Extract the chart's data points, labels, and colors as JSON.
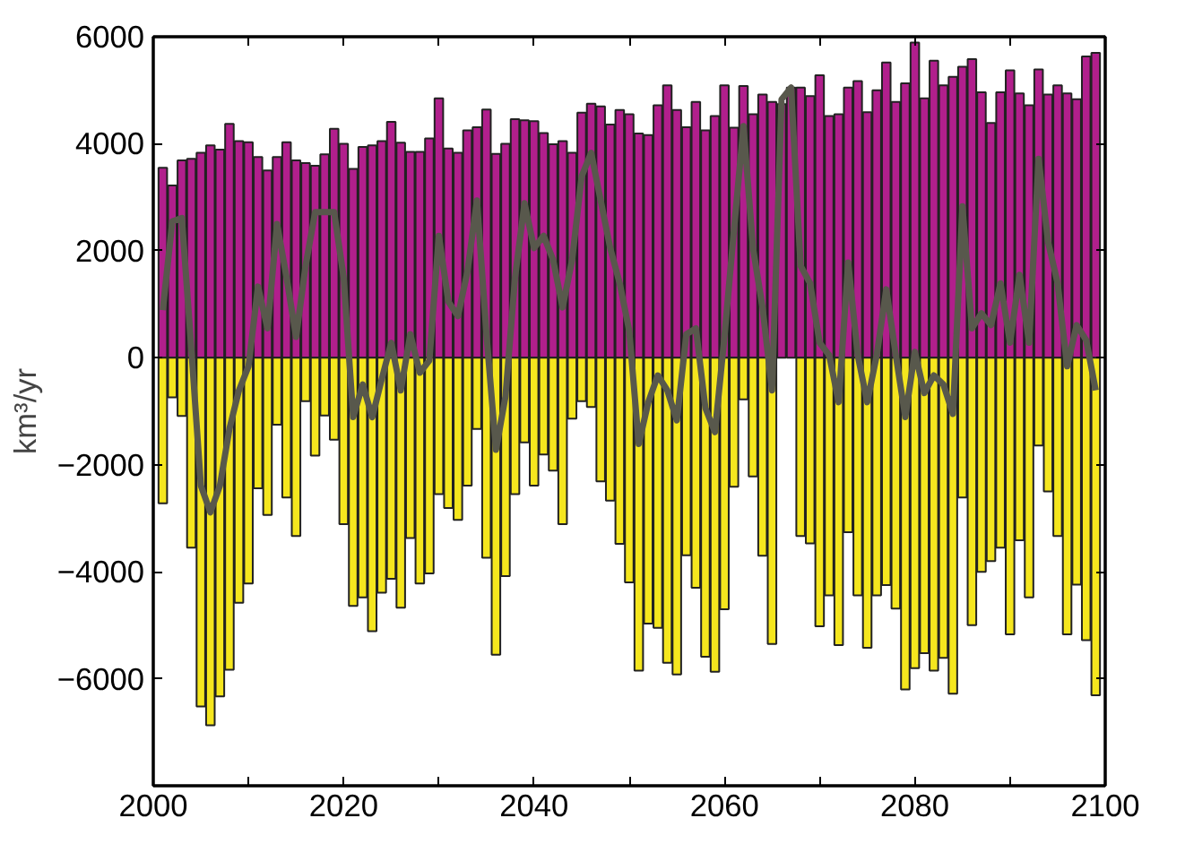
{
  "chart_data": {
    "type": "bar",
    "ylabel": "km³/yr",
    "x": [
      2001,
      2002,
      2003,
      2004,
      2005,
      2006,
      2007,
      2008,
      2009,
      2010,
      2011,
      2012,
      2013,
      2014,
      2015,
      2016,
      2017,
      2018,
      2019,
      2020,
      2021,
      2022,
      2023,
      2024,
      2025,
      2026,
      2027,
      2028,
      2029,
      2030,
      2031,
      2032,
      2033,
      2034,
      2035,
      2036,
      2037,
      2038,
      2039,
      2040,
      2041,
      2042,
      2043,
      2044,
      2045,
      2046,
      2047,
      2048,
      2049,
      2050,
      2051,
      2052,
      2053,
      2054,
      2055,
      2056,
      2057,
      2058,
      2059,
      2060,
      2061,
      2062,
      2063,
      2064,
      2065,
      2066,
      2067,
      2068,
      2069,
      2070,
      2071,
      2072,
      2073,
      2074,
      2075,
      2076,
      2077,
      2078,
      2079,
      2080,
      2081,
      2082,
      2083,
      2084,
      2085,
      2086,
      2087,
      2088,
      2089,
      2090,
      2091,
      2092,
      2093,
      2094,
      2095,
      2096,
      2097,
      2098,
      2099
    ],
    "series": [
      {
        "color": "#b11f8c",
        "values": [
          3550,
          3220,
          3690,
          3720,
          3830,
          3970,
          3890,
          4370,
          4050,
          4030,
          3750,
          3500,
          3750,
          4030,
          3690,
          3640,
          3590,
          3800,
          4280,
          4000,
          3530,
          3940,
          3970,
          4050,
          4410,
          4020,
          3850,
          3850,
          4100,
          4850,
          3910,
          3830,
          4250,
          4310,
          4640,
          3810,
          4000,
          4460,
          4440,
          4420,
          4200,
          3990,
          4050,
          3830,
          4580,
          4750,
          4700,
          4360,
          4630,
          4550,
          4190,
          4160,
          4720,
          5090,
          4630,
          4310,
          4780,
          4250,
          4520,
          5090,
          4300,
          5080,
          4550,
          4920,
          4780,
          4740,
          5050,
          5050,
          4890,
          5280,
          4520,
          4550,
          5050,
          5170,
          4590,
          5000,
          5520,
          4780,
          5130,
          5890,
          4850,
          5550,
          5090,
          5250,
          5440,
          5580,
          4960,
          4390,
          4960,
          5370,
          4940,
          4720,
          5390,
          4920,
          5090,
          4940,
          4830,
          5630,
          5700
        ]
      },
      {
        "color": "#f5e61e",
        "values": [
          -2720,
          -740,
          -1090,
          -3550,
          -6520,
          -6870,
          -6330,
          -5830,
          -4580,
          -4220,
          -2440,
          -2940,
          -1250,
          -2610,
          -3330,
          -810,
          -1830,
          -1080,
          -1530,
          -3110,
          -4640,
          -4480,
          -5110,
          -4390,
          -4130,
          -4670,
          -3370,
          -4220,
          -4030,
          -2550,
          -2810,
          -3030,
          -2390,
          -1330,
          -3740,
          -5550,
          -4080,
          -2550,
          -1580,
          -2390,
          -1810,
          -2110,
          -3110,
          -1140,
          -810,
          -920,
          -2310,
          -2670,
          -3480,
          -4200,
          -5850,
          -4970,
          -5050,
          -5700,
          -5920,
          -3690,
          -4300,
          -5590,
          -5870,
          -4700,
          -2410,
          -780,
          -2220,
          -3700,
          -5350,
          null,
          null,
          -3330,
          -3470,
          -5020,
          -4440,
          -5370,
          -3260,
          -4440,
          -5420,
          -4440,
          -4250,
          -4690,
          -6200,
          -5800,
          -5520,
          -5850,
          -5610,
          -6280,
          -2610,
          -5000,
          -4000,
          -3800,
          -3550,
          -5170,
          -3410,
          -4480,
          -1640,
          -2500,
          -3330,
          -5170,
          -4240,
          -5280,
          -6310
        ]
      },
      {
        "type": "line",
        "color": "#58584c",
        "values": [
          890,
          2550,
          2610,
          160,
          -2390,
          -2890,
          -2390,
          -1330,
          -610,
          -160,
          1330,
          550,
          2500,
          1500,
          390,
          1720,
          2720,
          2720,
          2720,
          1500,
          -1110,
          -500,
          -1110,
          -400,
          280,
          -610,
          440,
          -280,
          -50,
          2280,
          1050,
          780,
          1610,
          2940,
          440,
          -1720,
          -720,
          1500,
          2890,
          2050,
          2280,
          1830,
          940,
          1830,
          3390,
          3830,
          2940,
          2050,
          1390,
          500,
          -1610,
          -830,
          -330,
          -610,
          -1170,
          440,
          550,
          -940,
          -1390,
          390,
          2390,
          4330,
          2050,
          940,
          -610,
          4830,
          5050,
          1720,
          1390,
          280,
          50,
          -830,
          1780,
          50,
          -830,
          50,
          1280,
          50,
          -1110,
          110,
          -660,
          -330,
          -500,
          -1050,
          2830,
          550,
          830,
          610,
          1390,
          280,
          1550,
          280,
          3720,
          2160,
          1390,
          -160,
          610,
          330,
          -610
        ]
      }
    ],
    "xlim": [
      2000,
      2100
    ],
    "xticks": [
      2000,
      {
        "value": 2010,
        "label": null
      },
      2020,
      {
        "value": 2030,
        "label": null
      },
      2040,
      {
        "value": 2050,
        "label": null
      },
      2060,
      {
        "value": 2070,
        "label": null
      },
      2080,
      {
        "value": 2090,
        "label": null
      },
      2100
    ],
    "ylim": [
      -8000,
      6000
    ],
    "yticks": [
      {
        "value": -8000,
        "label": null
      },
      {
        "value": -6000,
        "label": "−6000"
      },
      {
        "value": -4000,
        "label": "−4000"
      },
      {
        "value": -2000,
        "label": "−2000"
      },
      0,
      2000,
      4000,
      6000
    ],
    "stacked": true
  }
}
